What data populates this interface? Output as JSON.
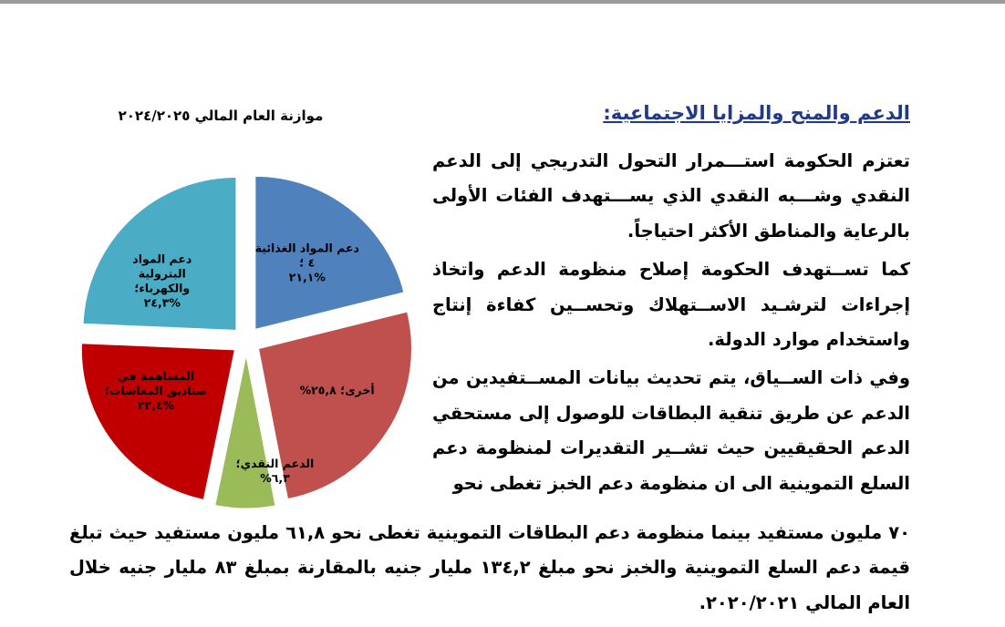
{
  "heading": "الدعم والمنح والمزايا الاجتماعية:",
  "chart_title": "موازنة العام المالي ٢٠٢٤/٢٠٢٥",
  "paragraphs": [
    "تعتزم الحكومة استـــمرار التحول التدريجي إلى الدعم النقدي وشـــبه النقدي الذي يســـتهدف الفئات الأولى بالرعاية والمناطق الأكثر احتياجاً.",
    "كما تســتهدف الحكومة إصلاح منظومة الدعم واتخاذ إجراءات لترشـيد الاســتهلاك وتحســين كفاءة إنتاج واستخدام موارد الدولة.",
    "وفي ذات الســياق، يتم تحديث بيانات المســتفيدين من الدعم عن طريق تنقية البطاقات للوصول إلى مستحقي الدعم الحقيقيين حيث تشــير التقديرات لمنظومة دعم السلع التموينية الى ان منظومة دعم الخبز تغطى نحو"
  ],
  "paragraph_continued": "٧٠ مليون مستفيد بينما منظومة دعم البطاقات التموينية تغطى نحو ٦١,٨ مليون مستفيد حيث تبلغ قيمة دعم السلع التموينية والخبز نحو مبلغ ١٣٤,٢ مليار جنيه بالمقارنة بمبلغ ٨٣ مليار جنيه خلال العام المالي ٢٠٢٠/٢٠٢١.",
  "chart_data": {
    "type": "pie",
    "title": "موازنة العام المالي ٢٠٢٤/٢٠٢٥",
    "slices": [
      {
        "label_lines": [
          "دعم المواد الغذائية",
          "٤ ؛",
          "%٢١,١"
        ],
        "value": 21.1,
        "color": "#4f81bd"
      },
      {
        "label_lines": [
          "أخرى؛ ٢٥,٨%"
        ],
        "value": 25.8,
        "color": "#c0504d"
      },
      {
        "label_lines": [
          "الدعم النقدي؛",
          "٦,٣%"
        ],
        "value": 6.3,
        "color": "#9bbb59"
      },
      {
        "label_lines": [
          "المساهمة في",
          "صناديق المعاشات؛",
          "%٢٢,٤"
        ],
        "value": 22.4,
        "color": "#c00000"
      },
      {
        "label_lines": [
          "دعم المواد",
          "البترولية",
          "والكهرباء؛",
          "%٢٤,٣"
        ],
        "value": 24.3,
        "color": "#4bacc6"
      }
    ]
  }
}
